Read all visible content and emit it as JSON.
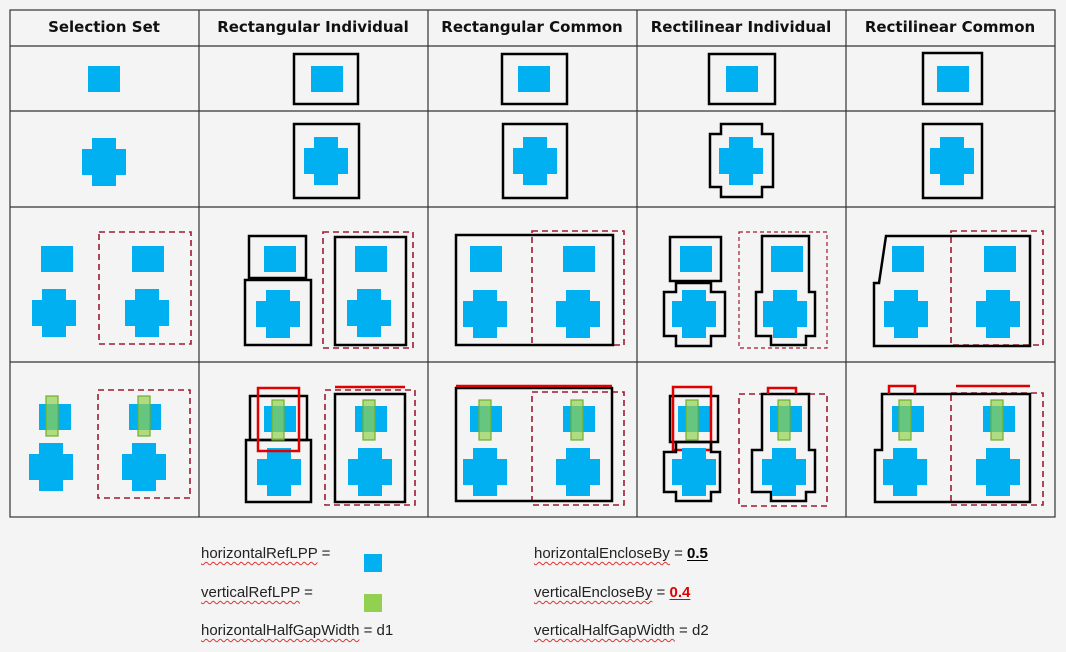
{
  "table": {
    "headers": [
      "Selection Set",
      "Rectangular Individual",
      "Rectangular Common",
      "Rectilinear Individual",
      "Rectilinear Common"
    ]
  },
  "legend": {
    "horizontal_ref_lpp": {
      "label": "horizontalRefLPP",
      "suffix": " =",
      "color": "#00b0f0"
    },
    "vertical_ref_lpp": {
      "label": "verticalRefLPP",
      "suffix": " =",
      "color": "#92d050"
    },
    "horizontal_half_gap": {
      "label": "horizontalHalfGapWidth",
      "suffix": " = d1"
    },
    "horizontal_enclose_by": {
      "label": "horizontalEncloseBy",
      "suffix": " = ",
      "value": "0.5",
      "value_color": "#000000"
    },
    "vertical_enclose_by": {
      "label": "verticalEncloseBy",
      "suffix": " = ",
      "value": "0.4",
      "value_color": "#e00000"
    },
    "vertical_half_gap": {
      "label": "verticalHalfGapWidth",
      "suffix": " = d2"
    }
  },
  "colors": {
    "shape_blue": "#00b0f0",
    "shape_green": "#92d050",
    "boundary_black": "#000000",
    "boundary_red": "#e00000",
    "selection_dashed": "#a01a30"
  }
}
